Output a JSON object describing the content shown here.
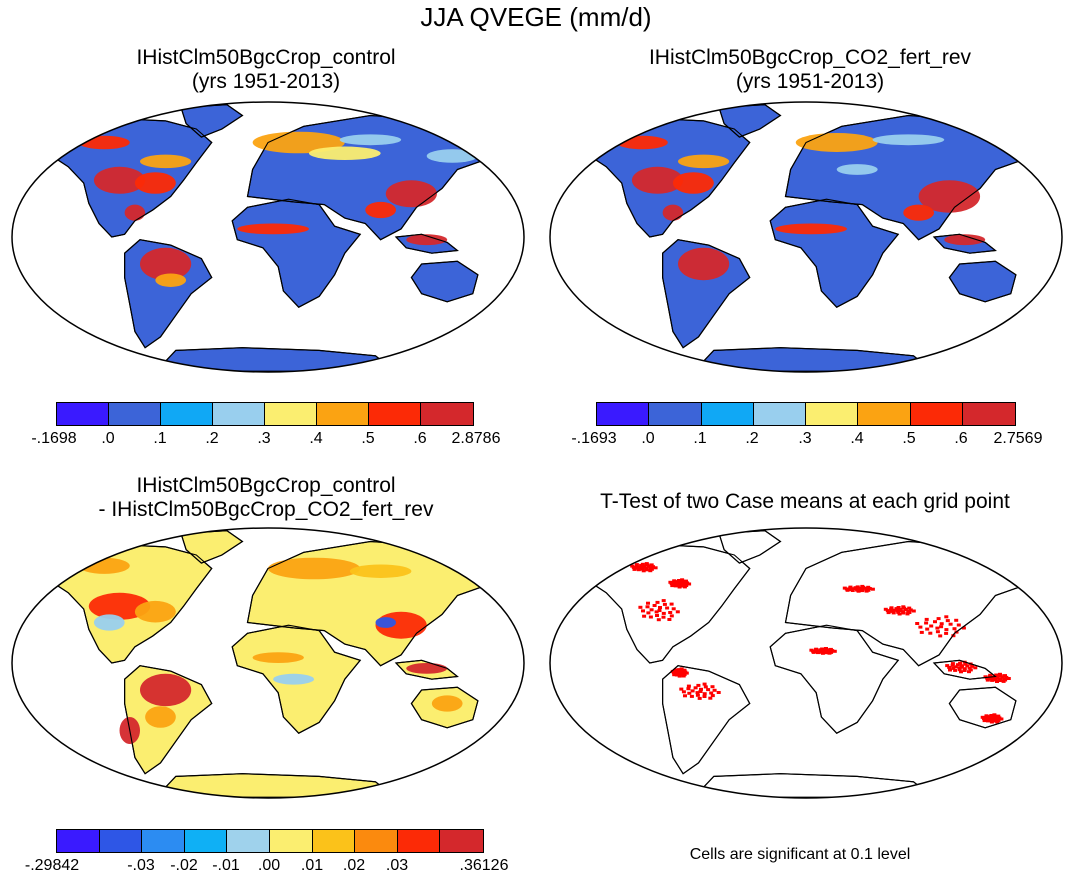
{
  "title": "JJA QVEGE (mm/d)",
  "panels": [
    {
      "title_line1": "IHistClm50BgcCrop_control",
      "title_line2": "(yrs 1951-2013)"
    },
    {
      "title_line1": "IHistClm50BgcCrop_CO2_fert_rev",
      "title_line2": "(yrs 1951-2013)"
    },
    {
      "title_line1": "IHistClm50BgcCrop_control",
      "title_line2": "- IHistClm50BgcCrop_CO2_fert_rev"
    },
    {
      "title_line1": "T-Test of two Case means at each grid point",
      "title_line2": ""
    }
  ],
  "colorbars": [
    {
      "colors": [
        "#3a1aff",
        "#3c64d8",
        "#10a8f5",
        "#99cfee",
        "#fbee70",
        "#fba312",
        "#fc2a06",
        "#d4282c"
      ],
      "labels": [
        "-.1698",
        ".0",
        ".1",
        ".2",
        ".3",
        ".4",
        ".5",
        ".6",
        "2.8786"
      ]
    },
    {
      "colors": [
        "#3a1aff",
        "#3c64d8",
        "#10a8f5",
        "#99cfee",
        "#fbee70",
        "#fba312",
        "#fc2a06",
        "#d4282c"
      ],
      "labels": [
        "-.1693",
        ".0",
        ".1",
        ".2",
        ".3",
        ".4",
        ".5",
        ".6",
        "2.7569"
      ]
    },
    {
      "colors": [
        "#3a1aff",
        "#2e56e6",
        "#2c8cf2",
        "#0fb0f5",
        "#9fd2ec",
        "#fbee70",
        "#fbc21a",
        "#fb8a0e",
        "#fc2a06",
        "#d4282c"
      ],
      "labels": [
        "-.29842",
        "-.03",
        "-.02",
        "-.01",
        ".00",
        ".01",
        ".02",
        ".03",
        ".36126"
      ]
    }
  ],
  "significance_note": "Cells are significant at 0.1 level",
  "significance_color": "#ff0000",
  "land_color": "#3c64d8",
  "diff_land_color": "#fbee70"
}
